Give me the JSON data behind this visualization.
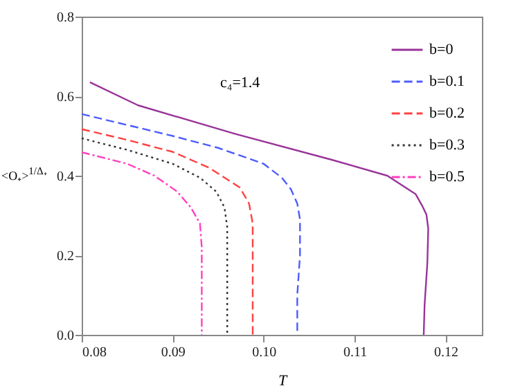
{
  "chart_data": {
    "type": "line",
    "xlabel": "T",
    "ylabel": "<O₊>$^{1/Δ₊}$",
    "annotations": [
      "c₄=1.4"
    ],
    "xlim": [
      0.08,
      0.124
    ],
    "xticks": [
      0.08,
      0.09,
      {
        "value": 0.1,
        "label": "0.10"
      },
      0.11,
      0.12
    ],
    "ylim": [
      0,
      0.8
    ],
    "yticks": [
      {
        "value": 0,
        "label": "0.0"
      },
      0.2,
      0.4,
      0.6,
      0.8
    ],
    "legend": "top right",
    "grid": false,
    "series": [
      {
        "name": "b=0",
        "color": "#993399",
        "line_style": "solid",
        "x": [
          0.0809,
          0.0862,
          0.0969,
          0.1075,
          0.1136,
          0.1167,
          0.1174,
          0.1179,
          0.1181,
          0.118,
          0.1177,
          0.1176
        ],
        "values": [
          0.635,
          0.577,
          0.505,
          0.44,
          0.4,
          0.354,
          0.326,
          0.302,
          0.267,
          0.18,
          0.076,
          0
        ]
      },
      {
        "name": "b=0.1",
        "color": "#4d5cff",
        "line_style": "dashed",
        "x": [
          0.08,
          0.09,
          0.095,
          0.1,
          0.102,
          0.103,
          0.1037,
          0.104,
          0.104,
          0.1037,
          0.1037
        ],
        "values": [
          0.555,
          0.5,
          0.47,
          0.43,
          0.395,
          0.366,
          0.33,
          0.29,
          0.2,
          0.1,
          0
        ]
      },
      {
        "name": "b=0.2",
        "color": "#ff4040",
        "line_style": "dashed",
        "x": [
          0.08,
          0.085,
          0.09,
          0.094,
          0.0974,
          0.0984,
          0.0988,
          0.0988,
          0.0988
        ],
        "values": [
          0.517,
          0.49,
          0.46,
          0.42,
          0.37,
          0.33,
          0.28,
          0.15,
          0
        ]
      },
      {
        "name": "b=0.3",
        "color": "#333333",
        "line_style": "dotted",
        "x": [
          0.08,
          0.085,
          0.09,
          0.093,
          0.0948,
          0.0957,
          0.096,
          0.096
        ],
        "values": [
          0.494,
          0.465,
          0.43,
          0.395,
          0.36,
          0.32,
          0.27,
          0
        ]
      },
      {
        "name": "b=0.5",
        "color": "#ff40c0",
        "line_style": "dashdot",
        "x": [
          0.08,
          0.085,
          0.088,
          0.0905,
          0.092,
          0.093,
          0.0932,
          0.0932
        ],
        "values": [
          0.459,
          0.43,
          0.4,
          0.36,
          0.32,
          0.28,
          0.22,
          0
        ]
      }
    ]
  }
}
